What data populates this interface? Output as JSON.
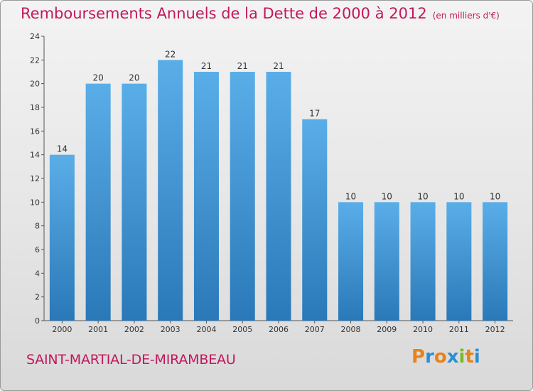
{
  "header": {
    "title": "Remboursements Annuels de la Dette de 2000 à 2012",
    "unit": "(en milliers d'€)"
  },
  "footer": {
    "commune": "SAINT-MARTIAL-DE-MIRAMBEAU",
    "logo": "Proxiti"
  },
  "colors": {
    "title": "#c2185b",
    "bar_top": "#5aaee8",
    "bar_bottom": "#2a78b8",
    "logo_letters": [
      "#e8821c",
      "#2a8fd4",
      "#e8821c",
      "#2a8fd4",
      "#7ab82a",
      "#e8821c",
      "#2a8fd4"
    ]
  },
  "chart_data": {
    "type": "bar",
    "title": "Remboursements Annuels de la Dette de 2000 à 2012",
    "xlabel": "",
    "ylabel": "",
    "categories": [
      "2000",
      "2001",
      "2002",
      "2003",
      "2004",
      "2005",
      "2006",
      "2007",
      "2008",
      "2009",
      "2010",
      "2011",
      "2012"
    ],
    "values": [
      14,
      20,
      20,
      22,
      21,
      21,
      21,
      17,
      10,
      10,
      10,
      10,
      10
    ],
    "ylim": [
      0,
      24
    ],
    "yticks": [
      0,
      2,
      4,
      6,
      8,
      10,
      12,
      14,
      16,
      18,
      20,
      22,
      24
    ],
    "grid": false,
    "data_labels": true
  }
}
